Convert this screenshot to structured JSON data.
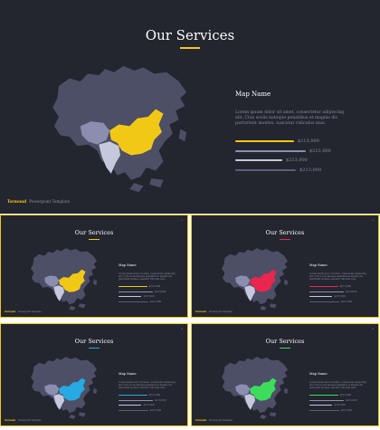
{
  "slides": [
    {
      "title": "Our Services",
      "accent": "#f2c816",
      "map_name": "Map Name",
      "description": "Lorem ipsum dolor sit amet, consectetur adipiscing elit. Cras sociis natoque penatibus et magnis dis parturient montes, nascetur ridiculus mus.",
      "bars": [
        {
          "value": "$213,000",
          "color": "#f2c816",
          "fill": 0.6
        },
        {
          "value": "$213,000",
          "color": "#8a8faf",
          "fill": 0.72
        },
        {
          "value": "$213,000",
          "color": "#c6c9de",
          "fill": 0.48
        },
        {
          "value": "$213,000",
          "color": "#5b5e78",
          "fill": 0.62
        }
      ],
      "brand": "Tormund",
      "brand_sub": "Powerpoint Template",
      "page_number": ""
    },
    {
      "title": "Our Services",
      "accent": "#f2c816",
      "map_name": "Map Name",
      "description": "Lorem ipsum dolor sit amet, consectetur adipiscing elit. Cras sociis natoque penatibus et magnis dis parturient montes, nascetur ridiculus mus.",
      "bars": [
        {
          "value": "$213,000",
          "color": "#f2c816",
          "fill": 0.6
        },
        {
          "value": "$213,000",
          "color": "#8a8faf",
          "fill": 0.72
        },
        {
          "value": "$213,000",
          "color": "#c6c9de",
          "fill": 0.48
        },
        {
          "value": "$213,000",
          "color": "#5b5e78",
          "fill": 0.62
        }
      ],
      "brand": "Tormund",
      "brand_sub": "Powerpoint Template",
      "page_number": "1"
    },
    {
      "title": "Our Services",
      "accent": "#e8264e",
      "map_name": "Map Name",
      "description": "Lorem ipsum dolor sit amet, consectetur adipiscing elit. Cras sociis natoque penatibus et magnis dis parturient montes, nascetur ridiculus mus.",
      "bars": [
        {
          "value": "$213,000",
          "color": "#e8264e",
          "fill": 0.6
        },
        {
          "value": "$213,000",
          "color": "#8a8faf",
          "fill": 0.72
        },
        {
          "value": "$213,000",
          "color": "#c6c9de",
          "fill": 0.48
        },
        {
          "value": "$213,000",
          "color": "#5b5e78",
          "fill": 0.62
        }
      ],
      "brand": "Tormund",
      "brand_sub": "Powerpoint Template",
      "page_number": "2"
    },
    {
      "title": "Our Services",
      "accent": "#27a9e1",
      "map_name": "Map Name",
      "description": "Lorem ipsum dolor sit amet, consectetur adipiscing elit. Cras sociis natoque penatibus et magnis dis parturient montes, nascetur ridiculus mus.",
      "bars": [
        {
          "value": "$213,000",
          "color": "#27a9e1",
          "fill": 0.6
        },
        {
          "value": "$213,000",
          "color": "#8a8faf",
          "fill": 0.72
        },
        {
          "value": "$213,000",
          "color": "#c6c9de",
          "fill": 0.48
        },
        {
          "value": "$213,000",
          "color": "#5b5e78",
          "fill": 0.62
        }
      ],
      "brand": "Tormund",
      "brand_sub": "Powerpoint Template",
      "page_number": "3"
    },
    {
      "title": "Our Services",
      "accent": "#3ddc5c",
      "map_name": "Map Name",
      "description": "Lorem ipsum dolor sit amet, consectetur adipiscing elit. Cras sociis natoque penatibus et magnis dis parturient montes, nascetur ridiculus mus.",
      "bars": [
        {
          "value": "$213,000",
          "color": "#3ddc5c",
          "fill": 0.6
        },
        {
          "value": "$213,000",
          "color": "#8a8faf",
          "fill": 0.72
        },
        {
          "value": "$213,000",
          "color": "#c6c9de",
          "fill": 0.48
        },
        {
          "value": "$213,000",
          "color": "#5b5e78",
          "fill": 0.62
        }
      ],
      "brand": "Tormund",
      "brand_sub": "Powerpoint Template",
      "page_number": "4"
    }
  ],
  "map_colors": {
    "asia": "#4c4f66",
    "central": "#8a8faf",
    "india": "#c6c9de"
  },
  "frame_color": "#f2c816"
}
